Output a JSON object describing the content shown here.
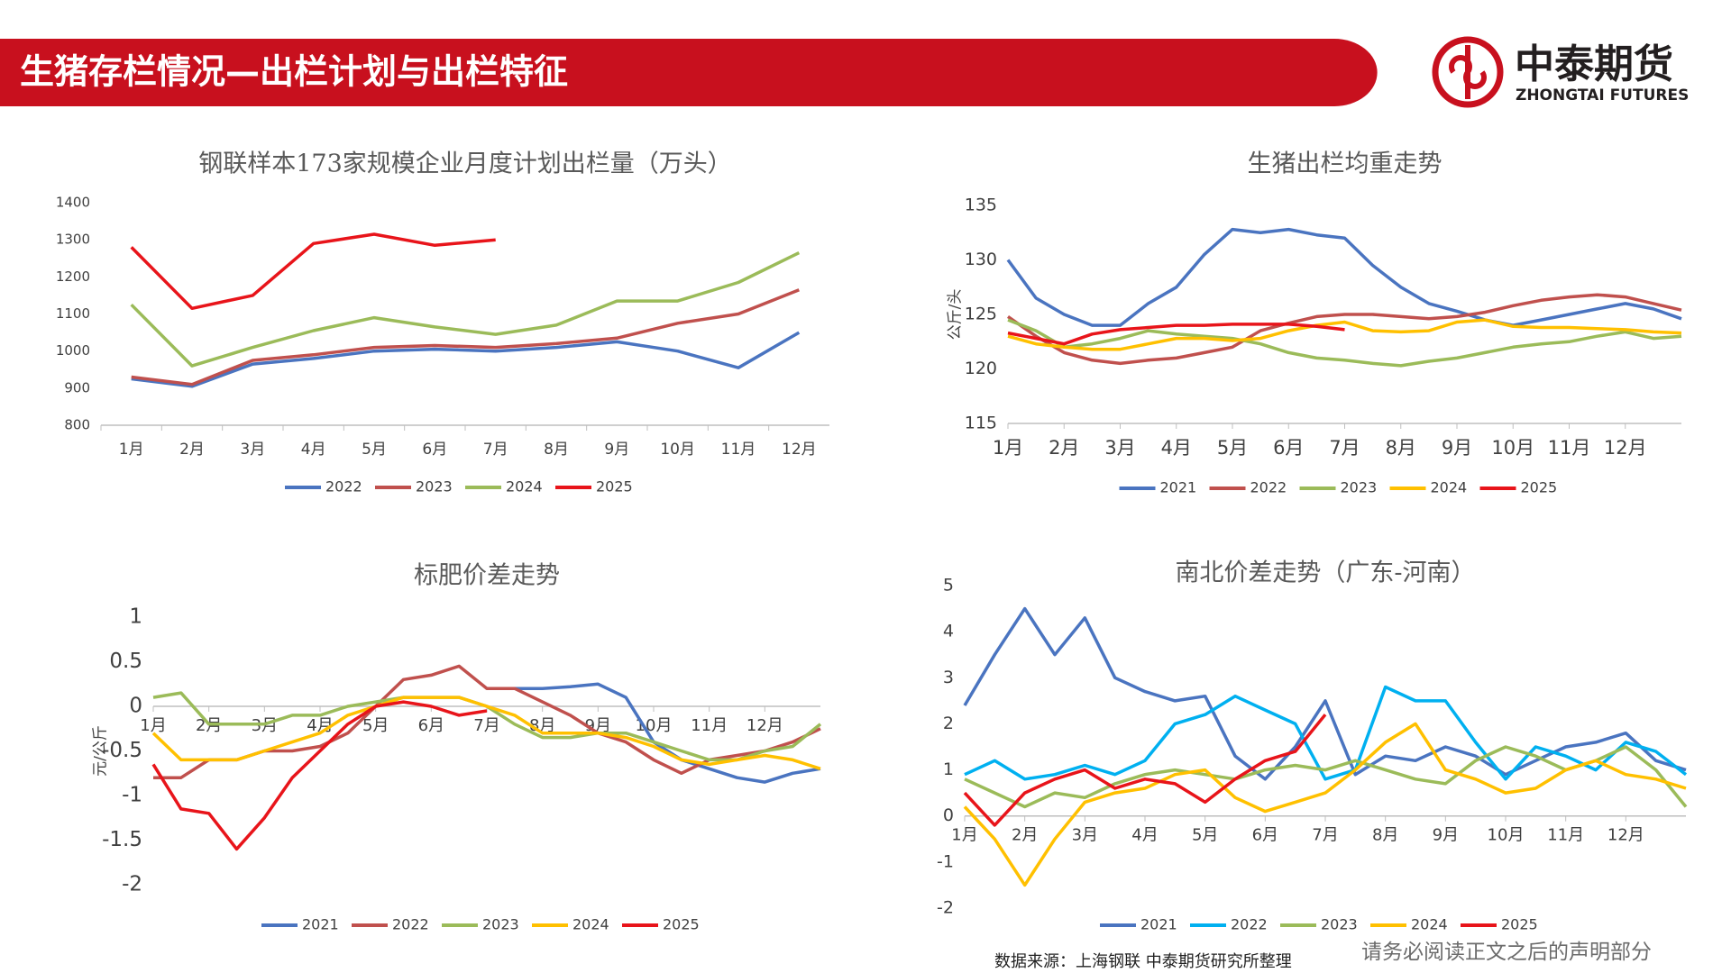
{
  "header": {
    "title": "生猪存栏情况—出栏计划与出栏特征",
    "logo_cn": "中泰期货",
    "logo_en": "ZHONGTAI FUTURES"
  },
  "footer": {
    "source": "数据来源：上海钢联   中泰期货研究所整理",
    "disclaimer": "请务必阅读正文之后的声明部分"
  },
  "chart_data": [
    {
      "type": "line",
      "title": "钢联样本173家规模企业月度计划出栏量（万头）",
      "categories": [
        "1月",
        "2月",
        "3月",
        "4月",
        "5月",
        "6月",
        "7月",
        "8月",
        "9月",
        "10月",
        "11月",
        "12月"
      ],
      "ylim": [
        800,
        1400
      ],
      "yticks": [
        800,
        900,
        1000,
        1100,
        1200,
        1300,
        1400
      ],
      "grid": false,
      "series": [
        {
          "name": "2022",
          "color": "#4a74c0",
          "values": [
            925,
            905,
            965,
            980,
            1000,
            1005,
            1000,
            1010,
            1025,
            1000,
            955,
            1050
          ]
        },
        {
          "name": "2023",
          "color": "#c0504d",
          "values": [
            930,
            910,
            975,
            990,
            1010,
            1015,
            1010,
            1020,
            1035,
            1075,
            1100,
            1165
          ]
        },
        {
          "name": "2024",
          "color": "#9bbb59",
          "values": [
            1125,
            960,
            1010,
            1055,
            1090,
            1065,
            1045,
            1070,
            1135,
            1135,
            1185,
            1265
          ]
        },
        {
          "name": "2025",
          "color": "#e8141a",
          "values": [
            1280,
            1115,
            1150,
            1290,
            1315,
            1285,
            1300,
            null,
            null,
            null,
            null,
            null
          ]
        }
      ]
    },
    {
      "type": "line",
      "title": "生猪出栏均重走势",
      "y_label": "公斤/头",
      "x": [
        1,
        1.5,
        2,
        2.5,
        3,
        3.5,
        4,
        4.5,
        5,
        5.5,
        6,
        6.5,
        7,
        7.5,
        8,
        8.5,
        9,
        9.5,
        10,
        10.5,
        11,
        11.5,
        12,
        12.5,
        13
      ],
      "xlim": [
        1,
        13
      ],
      "xticks": [
        {
          "value": 1,
          "label": "1月"
        },
        {
          "value": 2,
          "label": "2月"
        },
        {
          "value": 3,
          "label": "3月"
        },
        {
          "value": 4,
          "label": "4月"
        },
        {
          "value": 5,
          "label": "5月"
        },
        {
          "value": 6,
          "label": "6月"
        },
        {
          "value": 7,
          "label": "7月"
        },
        {
          "value": 8,
          "label": "8月"
        },
        {
          "value": 9,
          "label": "9月"
        },
        {
          "value": 10,
          "label": "10月"
        },
        {
          "value": 11,
          "label": "11月"
        },
        {
          "value": 12,
          "label": "12月"
        }
      ],
      "ylim": [
        115,
        135
      ],
      "yticks": [
        115,
        120,
        125,
        130,
        135
      ],
      "grid": false,
      "series": [
        {
          "name": "2021",
          "color": "#4a74c0",
          "values": [
            130,
            126.5,
            125,
            124,
            124,
            126,
            127.5,
            130.5,
            132.8,
            132.5,
            132.8,
            132.3,
            132,
            129.5,
            127.5,
            126,
            125.3,
            124.5,
            124,
            124.5,
            125,
            125.5,
            126,
            125.5,
            124.6
          ]
        },
        {
          "name": "2022",
          "color": "#c0504d",
          "values": [
            124.8,
            123,
            121.5,
            120.8,
            120.5,
            120.8,
            121,
            121.5,
            122,
            123.5,
            124.2,
            124.8,
            125,
            125,
            124.8,
            124.6,
            124.8,
            125.2,
            125.8,
            126.3,
            126.6,
            126.8,
            126.6,
            126,
            125.4
          ]
        },
        {
          "name": "2023",
          "color": "#9bbb59",
          "values": [
            124.5,
            123.5,
            122,
            122.3,
            122.8,
            123.5,
            123.2,
            123,
            122.8,
            122.3,
            121.5,
            121,
            120.8,
            120.5,
            120.3,
            120.7,
            121,
            121.5,
            122,
            122.3,
            122.5,
            123,
            123.4,
            122.8,
            123
          ]
        },
        {
          "name": "2024",
          "color": "#ffc000",
          "values": [
            123,
            122.3,
            122,
            121.8,
            121.8,
            122.3,
            122.8,
            122.8,
            122.6,
            122.8,
            123.5,
            124,
            124.3,
            123.5,
            123.4,
            123.5,
            124.3,
            124.5,
            123.9,
            123.8,
            123.8,
            123.7,
            123.6,
            123.4,
            123.3
          ]
        },
        {
          "name": "2025",
          "color": "#e8141a",
          "values": [
            123.3,
            122.8,
            122.3,
            123.2,
            123.6,
            123.8,
            124,
            124,
            124.1,
            124.1,
            124.1,
            123.9,
            123.6,
            null,
            null,
            null,
            null,
            null,
            null,
            null,
            null,
            null,
            null,
            null,
            null
          ]
        }
      ]
    },
    {
      "type": "line",
      "title": "标肥价差走势",
      "y_label": "元/公斤",
      "x": [
        1,
        1.5,
        2,
        2.5,
        3,
        3.5,
        4,
        4.5,
        5,
        5.5,
        6,
        6.5,
        7,
        7.5,
        8,
        8.5,
        9,
        9.5,
        10,
        10.5,
        11,
        11.5,
        12,
        12.5,
        13
      ],
      "xlim": [
        1,
        13
      ],
      "xticks": [
        {
          "value": 1,
          "label": "1月"
        },
        {
          "value": 2,
          "label": "2月"
        },
        {
          "value": 3,
          "label": "3月"
        },
        {
          "value": 4,
          "label": "4月"
        },
        {
          "value": 5,
          "label": "5月"
        },
        {
          "value": 6,
          "label": "6月"
        },
        {
          "value": 7,
          "label": "7月"
        },
        {
          "value": 8,
          "label": "8月"
        },
        {
          "value": 9,
          "label": "9月"
        },
        {
          "value": 10,
          "label": "10月"
        },
        {
          "value": 11,
          "label": "11月"
        },
        {
          "value": 12,
          "label": "12月"
        }
      ],
      "ylim": [
        -2,
        1
      ],
      "yticks": [
        -2,
        -1.5,
        -1,
        -0.5,
        0,
        0.5,
        1
      ],
      "grid": false,
      "series": [
        {
          "name": "2021",
          "color": "#4a74c0",
          "values": [
            null,
            null,
            null,
            null,
            null,
            null,
            null,
            null,
            null,
            null,
            null,
            null,
            null,
            0.2,
            0.2,
            0.22,
            0.25,
            0.1,
            -0.4,
            -0.6,
            -0.7,
            -0.8,
            -0.85,
            -0.75,
            -0.7
          ]
        },
        {
          "name": "2022",
          "color": "#c0504d",
          "values": [
            -0.8,
            -0.8,
            -0.6,
            -0.6,
            -0.5,
            -0.5,
            -0.45,
            -0.3,
            0,
            0.3,
            0.35,
            0.45,
            0.2,
            0.2,
            0.05,
            -0.1,
            -0.3,
            -0.4,
            -0.6,
            -0.75,
            -0.6,
            -0.55,
            -0.5,
            -0.4,
            -0.25
          ]
        },
        {
          "name": "2023",
          "color": "#9bbb59",
          "values": [
            0.1,
            0.15,
            -0.2,
            -0.2,
            -0.2,
            -0.1,
            -0.1,
            0,
            0.05,
            0.1,
            0.1,
            0.1,
            0,
            -0.2,
            -0.35,
            -0.35,
            -0.3,
            -0.3,
            -0.4,
            -0.5,
            -0.6,
            -0.6,
            -0.5,
            -0.45,
            -0.2
          ]
        },
        {
          "name": "2024",
          "color": "#ffc000",
          "values": [
            -0.3,
            -0.6,
            -0.6,
            -0.6,
            -0.5,
            -0.4,
            -0.3,
            -0.1,
            0,
            0.1,
            0.1,
            0.1,
            0,
            -0.1,
            -0.3,
            -0.3,
            -0.3,
            -0.35,
            -0.45,
            -0.6,
            -0.65,
            -0.6,
            -0.55,
            -0.6,
            -0.7
          ]
        },
        {
          "name": "2025",
          "color": "#e8141a",
          "values": [
            -0.65,
            -1.15,
            -1.2,
            -1.6,
            -1.25,
            -0.8,
            -0.5,
            -0.2,
            0,
            0.05,
            0,
            -0.1,
            -0.05,
            null,
            null,
            null,
            null,
            null,
            null,
            null,
            null,
            null,
            null,
            null,
            null
          ]
        }
      ]
    },
    {
      "type": "line",
      "title": "南北价差走势（广东-河南）",
      "x": [
        1,
        1.5,
        2,
        2.5,
        3,
        3.5,
        4,
        4.5,
        5,
        5.5,
        6,
        6.5,
        7,
        7.5,
        8,
        8.5,
        9,
        9.5,
        10,
        10.5,
        11,
        11.5,
        12,
        12.5,
        13
      ],
      "xlim": [
        1,
        13
      ],
      "xticks": [
        {
          "value": 1,
          "label": "1月"
        },
        {
          "value": 2,
          "label": "2月"
        },
        {
          "value": 3,
          "label": "3月"
        },
        {
          "value": 4,
          "label": "4月"
        },
        {
          "value": 5,
          "label": "5月"
        },
        {
          "value": 6,
          "label": "6月"
        },
        {
          "value": 7,
          "label": "7月"
        },
        {
          "value": 8,
          "label": "8月"
        },
        {
          "value": 9,
          "label": "9月"
        },
        {
          "value": 10,
          "label": "10月"
        },
        {
          "value": 11,
          "label": "11月"
        },
        {
          "value": 12,
          "label": "12月"
        }
      ],
      "ylim": [
        -2,
        5
      ],
      "yticks": [
        -2,
        -1,
        0,
        1,
        2,
        3,
        4,
        5
      ],
      "grid": false,
      "series": [
        {
          "name": "2021",
          "color": "#4a74c0",
          "values": [
            2.4,
            3.5,
            4.5,
            3.5,
            4.3,
            3,
            2.7,
            2.5,
            2.6,
            1.3,
            0.8,
            1.5,
            2.5,
            0.9,
            1.3,
            1.2,
            1.5,
            1.3,
            0.9,
            1.2,
            1.5,
            1.6,
            1.8,
            1.2,
            1
          ]
        },
        {
          "name": "2022",
          "color": "#00b0f0",
          "values": [
            0.9,
            1.2,
            0.8,
            0.9,
            1.1,
            0.9,
            1.2,
            2,
            2.2,
            2.6,
            2.3,
            2,
            0.8,
            1,
            2.8,
            2.5,
            2.5,
            1.6,
            0.8,
            1.5,
            1.3,
            1,
            1.6,
            1.4,
            0.9
          ]
        },
        {
          "name": "2023",
          "color": "#9bbb59",
          "values": [
            0.8,
            0.5,
            0.2,
            0.5,
            0.4,
            0.7,
            0.9,
            1,
            0.9,
            0.8,
            1,
            1.1,
            1,
            1.2,
            1,
            0.8,
            0.7,
            1.2,
            1.5,
            1.3,
            1,
            1.2,
            1.5,
            1,
            0.2
          ]
        },
        {
          "name": "2024",
          "color": "#ffc000",
          "values": [
            0.2,
            -0.5,
            -1.5,
            -0.5,
            0.3,
            0.5,
            0.6,
            0.9,
            1,
            0.4,
            0.1,
            0.3,
            0.5,
            1,
            1.6,
            2,
            1,
            0.8,
            0.5,
            0.6,
            1,
            1.2,
            0.9,
            0.8,
            0.6
          ]
        },
        {
          "name": "2025",
          "color": "#e8141a",
          "values": [
            0.5,
            -0.2,
            0.5,
            0.8,
            1,
            0.6,
            0.8,
            0.7,
            0.3,
            0.8,
            1.2,
            1.4,
            2.2,
            null,
            null,
            null,
            null,
            null,
            null,
            null,
            null,
            null,
            null,
            null,
            null
          ]
        }
      ]
    }
  ]
}
